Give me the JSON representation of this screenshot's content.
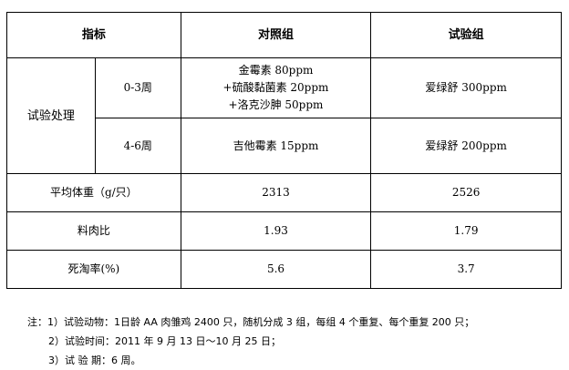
{
  "header": {
    "indicator": "指标",
    "control": "对照组",
    "trial": "试验组"
  },
  "treatment": {
    "label": "试验处理",
    "rows": [
      {
        "period": "0-3周",
        "control": [
          "金霉素 80ppm",
          "+硫酸黏菌素 20ppm",
          "+洛克沙胂 50ppm"
        ],
        "trial": "爱绿舒 300ppm"
      },
      {
        "period": "4-6周",
        "control": [
          "吉他霉素 15ppm"
        ],
        "trial": "爱绿舒 200ppm"
      }
    ]
  },
  "metrics": [
    {
      "label": "平均体重（g/只）",
      "control": "2313",
      "trial": "2526"
    },
    {
      "label": "料肉比",
      "control": "1.93",
      "trial": "1.79"
    },
    {
      "label": "死淘率(%)",
      "control": "5.6",
      "trial": "3.7"
    }
  ],
  "notes": [
    "注：1）试验动物：1日龄 AA 肉雏鸡 2400 只，随机分成 3 组，每组 4 个重复、每个重复 200 只；",
    "2）试验时间：2011 年 9 月 13 日～10 月 25 日；",
    "3）试 验 期：6 周。"
  ]
}
